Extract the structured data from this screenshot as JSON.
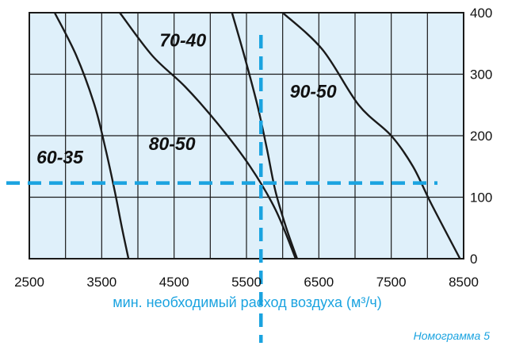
{
  "chart_data": {
    "type": "line",
    "xlabel": "мин. необходимый расход воздуха (м³/ч)",
    "ylabel": "",
    "caption": "Номограмма 5",
    "xlim": [
      2500,
      8500
    ],
    "ylim": [
      0,
      400
    ],
    "x_ticks": [
      2500,
      3500,
      4500,
      5500,
      6500,
      7500,
      8500
    ],
    "y_ticks": [
      0,
      100,
      200,
      300,
      400
    ],
    "grid": true,
    "colors": {
      "plot_bg": "#dff0fa",
      "curve": "#1a1a1a",
      "guide": "#1aa3e0",
      "accent_text": "#1aa3e0"
    },
    "series": [
      {
        "name": "60-35",
        "points": [
          [
            2850,
            400
          ],
          [
            3150,
            330
          ],
          [
            3400,
            250
          ],
          [
            3550,
            180
          ],
          [
            3680,
            110
          ],
          [
            3780,
            50
          ],
          [
            3870,
            0
          ]
        ]
      },
      {
        "name": "70-40",
        "points": [
          [
            3750,
            400
          ],
          [
            4200,
            330
          ],
          [
            4650,
            280
          ],
          [
            5100,
            220
          ],
          [
            5550,
            150
          ],
          [
            5900,
            80
          ],
          [
            6180,
            0
          ]
        ]
      },
      {
        "name": "80-50",
        "points": [
          [
            5300,
            400
          ],
          [
            5470,
            330
          ],
          [
            5650,
            250
          ],
          [
            5780,
            180
          ],
          [
            5900,
            110
          ],
          [
            6050,
            50
          ],
          [
            6200,
            0
          ]
        ]
      },
      {
        "name": "90-50",
        "points": [
          [
            6000,
            400
          ],
          [
            6550,
            340
          ],
          [
            7050,
            250
          ],
          [
            7500,
            200
          ],
          [
            7800,
            150
          ],
          [
            8050,
            90
          ],
          [
            8450,
            0
          ]
        ]
      }
    ],
    "guide_lines": [
      {
        "orientation": "horizontal",
        "y": 123
      },
      {
        "orientation": "vertical",
        "x": 5700
      }
    ]
  }
}
